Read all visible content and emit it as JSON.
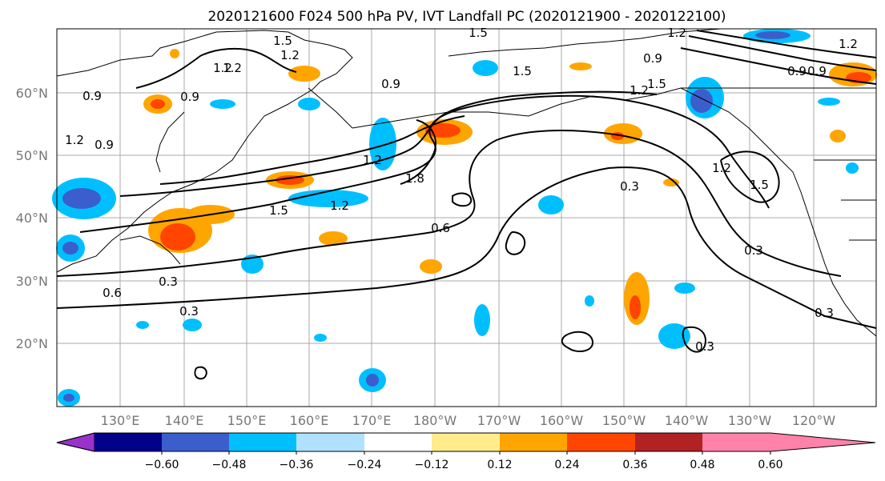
{
  "title": "2020121600 F024 500 hPa PV, IVT Landfall PC (2020121900 - 2020122100)",
  "map": {
    "lat_labels": [
      "60°N",
      "50°N",
      "40°N",
      "30°N",
      "20°N"
    ],
    "lon_labels": [
      "130°E",
      "140°E",
      "150°E",
      "160°E",
      "170°E",
      "180°W",
      "170°W",
      "160°W",
      "150°W",
      "140°W",
      "130°W",
      "120°W"
    ],
    "contour_labels": [
      "1.5",
      "1.2",
      "1.5",
      "1.2",
      "0.9",
      "0.9",
      "1.2",
      "1.5",
      "1.5",
      "0.9",
      "0.9",
      "1.2",
      "0.9",
      "1.2",
      "1.8",
      "1.5",
      "1.2",
      "0.6",
      "0.3",
      "0.3",
      "0.3",
      "0.6",
      "0.3",
      "0.3",
      "0.3",
      "1.2",
      "1.5",
      "1.2",
      "0.9",
      "0.9",
      "1.2",
      "1.2"
    ]
  },
  "colorbar": {
    "colors": [
      "#9932cc",
      "#00008b",
      "#3a5fcd",
      "#00bfff",
      "#b0e2ff",
      "#ffffff",
      "#ffec8b",
      "#ffa500",
      "#ff4500",
      "#b22222",
      "#ff82ab"
    ],
    "tick_labels": [
      "−0.60",
      "−0.48",
      "−0.36",
      "−0.24",
      "−0.12",
      "0.12",
      "0.24",
      "0.36",
      "0.48",
      "0.60"
    ]
  }
}
